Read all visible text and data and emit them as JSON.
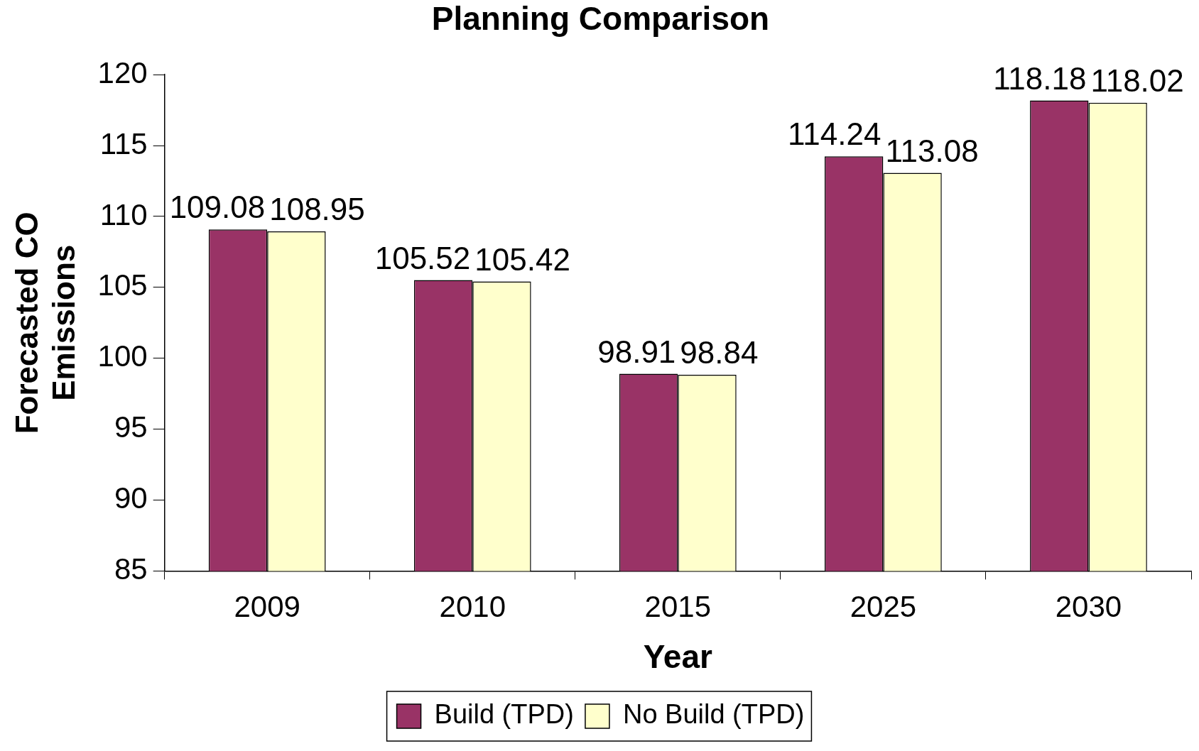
{
  "chart_data": {
    "type": "bar",
    "title": "Planning Comparison",
    "xlabel": "Year",
    "ylabel": "Forecasted CO Emissions",
    "categories": [
      "2009",
      "2010",
      "2015",
      "2025",
      "2030"
    ],
    "series": [
      {
        "name": "Build (TPD)",
        "color": "#993366",
        "values": [
          109.08,
          105.52,
          98.91,
          114.24,
          118.18
        ]
      },
      {
        "name": "No Build (TPD)",
        "color": "#ffffcc",
        "values": [
          108.95,
          105.42,
          98.84,
          113.08,
          118.02
        ]
      }
    ],
    "ylim": [
      85,
      120
    ],
    "yticks": [
      85,
      90,
      95,
      100,
      105,
      110,
      115,
      120
    ],
    "grid": false,
    "legend": "bottom",
    "data_labels": true
  }
}
